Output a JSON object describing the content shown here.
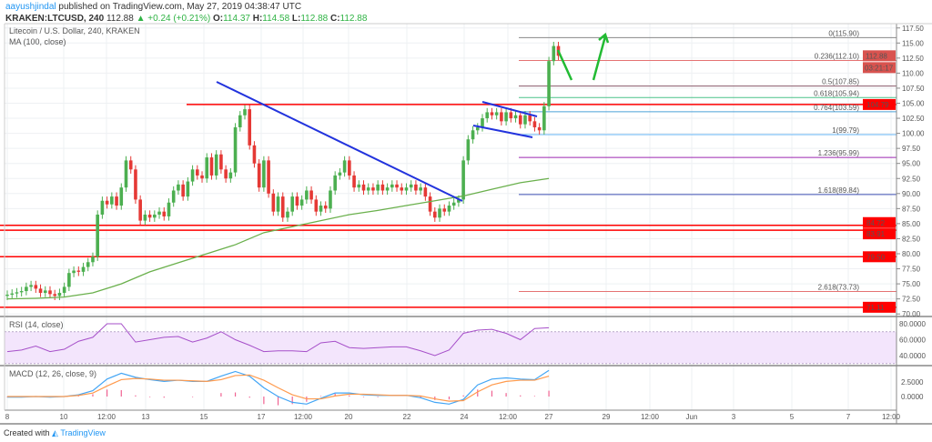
{
  "header": {
    "author": "aayushjindal",
    "published": "published on TradingView.com, May 27, 2019 04:38:47 UTC",
    "symbol": "KRAKEN:LTCUSD, 240",
    "last": "112.88",
    "change": "+0.24 (+0.21%)",
    "o_label": "O:",
    "o": "114.37",
    "h_label": "H:",
    "h": "114.58",
    "l_label": "L:",
    "l": "112.88",
    "c_label": "C:",
    "c": "112.88"
  },
  "footer": {
    "created": "Created with",
    "brand": "TradingView"
  },
  "colors": {
    "up": "#4caf50",
    "down": "#e53935",
    "ma": "#6ab04c",
    "rsi": "#a64fc9",
    "macd": "#42a5f5",
    "signal": "#ff9a4d",
    "hist": "#f06292",
    "level": "#ff0000",
    "trend": "#2233dd",
    "arrow": "#22bb33"
  },
  "chart_data": [
    {
      "type": "candlestick",
      "title": "Litecoin / U.S. Dollar, 240, KRAKEN",
      "indicator_label": "MA (100, close)",
      "ylim": [
        70,
        117.5
      ],
      "y_ticks": [
        "117.50",
        "115.00",
        "112.50",
        "110.00",
        "107.50",
        "105.00",
        "102.50",
        "100.00",
        "97.50",
        "95.00",
        "92.50",
        "90.00",
        "87.50",
        "85.00",
        "82.50",
        "80.00",
        "77.50",
        "75.00",
        "72.50",
        "70.00"
      ],
      "x_ticks": [
        "8",
        "10",
        "12:00",
        "13",
        "15",
        "17",
        "12:00",
        "20",
        "22",
        "24",
        "12:00",
        "27",
        "29",
        "12:00",
        "Jun",
        "3",
        "5",
        "7",
        "12:00"
      ],
      "grid": true,
      "closes": [
        73.2,
        73.4,
        73.6,
        73.8,
        74.5,
        74.8,
        74.2,
        73.5,
        73.9,
        73.3,
        73.0,
        73.5,
        74.5,
        76.8,
        77.2,
        77.0,
        77.8,
        78.6,
        79.5,
        86.5,
        88.8,
        88.2,
        89.5,
        88.0,
        91.0,
        95.5,
        94.0,
        89.0,
        85.5,
        86.5,
        86.0,
        86.5,
        87.0,
        86.2,
        88.5,
        90.5,
        91.5,
        89.5,
        92.0,
        94.0,
        93.0,
        92.5,
        96.0,
        93.0,
        96.5,
        94.0,
        92.5,
        93.5,
        101.0,
        103.0,
        104.0,
        98.0,
        95.0,
        91.0,
        95.5,
        90.0,
        87.0,
        89.5,
        86.0,
        87.0,
        89.5,
        88.0,
        89.0,
        90.5,
        89.0,
        87.0,
        88.0,
        87.5,
        90.5,
        93.0,
        93.5,
        95.5,
        93.0,
        91.0,
        91.5,
        90.5,
        91.0,
        90.5,
        91.5,
        90.5,
        91.0,
        91.5,
        91.0,
        90.5,
        91.0,
        91.5,
        90.5,
        91.0,
        89.5,
        87.0,
        86.0,
        87.5,
        87.0,
        88.0,
        88.5,
        89.0,
        95.5,
        99.0,
        100.5,
        101.0,
        102.5,
        103.5,
        103.0,
        103.5,
        102.0,
        103.5,
        102.5,
        103.0,
        101.5,
        103.0,
        102.0,
        101.0,
        100.5,
        104.5,
        112.0,
        114.5,
        112.88
      ],
      "ma100_daily": [
        72.5,
        72.6,
        72.8,
        73.5,
        75,
        77,
        78.5,
        80,
        81.5,
        83.5,
        84.5,
        85.5,
        86.5,
        87.2,
        88,
        88.8,
        89.6,
        90.7,
        91.8,
        92.5
      ],
      "price_badges": [
        {
          "value": "112.88",
          "color": "#d9534f"
        },
        {
          "value": "03:21:17",
          "color": "#d9534f"
        }
      ],
      "horizontal_levels": [
        {
          "value": 104.79,
          "label": "104.79"
        },
        {
          "value": 84.72,
          "label": "84.72"
        },
        {
          "value": 83.91,
          "label": "83.91"
        },
        {
          "value": 79.5,
          "label": "79.50"
        },
        {
          "value": 71.11,
          "label": "71.11"
        }
      ],
      "fibonacci": [
        {
          "ratio": "0",
          "price": 115.9,
          "label": "0(115.90)",
          "color": "#888888"
        },
        {
          "ratio": "0.236",
          "price": 112.1,
          "label": "0.236(112.10)",
          "color": "#e57373"
        },
        {
          "ratio": "0.5",
          "price": 107.85,
          "label": "0.5(107.85)",
          "color": "#8a5a6a"
        },
        {
          "ratio": "0.618",
          "price": 105.94,
          "label": "0.618(105.94)",
          "color": "#4cc38a"
        },
        {
          "ratio": "0.764",
          "price": 103.59,
          "label": "0.764(103.59)",
          "color": "#4aa0d8"
        },
        {
          "ratio": "1",
          "price": 99.79,
          "label": "1(99.79)",
          "color": "#64b5f6"
        },
        {
          "ratio": "1.236",
          "price": 95.99,
          "label": "1.236(95.99)",
          "color": "#9c27b0"
        },
        {
          "ratio": "1.618",
          "price": 89.84,
          "label": "1.618(89.84)",
          "color": "#3f51b5"
        },
        {
          "ratio": "2.618",
          "price": 73.73,
          "label": "2.618(73.73)",
          "color": "#e57373"
        }
      ]
    },
    {
      "type": "line",
      "title": "RSI (14, close)",
      "ylim": [
        30,
        85
      ],
      "y_ticks": [
        "80.0000",
        "60.0000",
        "40.0000"
      ],
      "band": [
        30,
        70
      ],
      "values_half_daily": [
        45,
        47,
        52,
        45,
        48,
        58,
        63,
        80,
        80,
        57,
        60,
        63,
        64,
        57,
        62,
        70,
        60,
        53,
        45,
        46,
        46,
        45,
        56,
        58,
        50,
        49,
        50,
        51,
        51,
        46,
        40,
        47,
        68,
        72,
        73,
        68,
        60,
        74,
        75
      ]
    },
    {
      "type": "line",
      "title": "MACD (12, 26, close, 9)",
      "y_ticks": [
        "2.5000",
        "0.0000"
      ],
      "series": [
        {
          "name": "macd",
          "values_half_daily": [
            -0.1,
            -0.1,
            0,
            -0.1,
            0,
            0.3,
            1.0,
            3.0,
            4.0,
            3.3,
            2.9,
            2.6,
            2.8,
            2.6,
            2.6,
            3.5,
            4.3,
            3.5,
            1.5,
            0,
            -1.0,
            -1.3,
            -0.3,
            0.6,
            0.6,
            0.3,
            0.2,
            0.2,
            0.2,
            -0.2,
            -1.0,
            -1.3,
            -0.5,
            2.0,
            3.0,
            3.2,
            3.0,
            2.9,
            4.5
          ]
        },
        {
          "name": "signal",
          "values_half_daily": [
            0,
            0,
            0,
            0,
            0,
            0.2,
            0.6,
            1.8,
            2.9,
            3.1,
            3.0,
            2.8,
            2.8,
            2.7,
            2.6,
            2.9,
            3.6,
            3.7,
            2.8,
            1.5,
            0.3,
            -0.4,
            -0.4,
            0.1,
            0.4,
            0.4,
            0.3,
            0.2,
            0.2,
            0.1,
            -0.4,
            -0.8,
            -0.7,
            0.8,
            2.0,
            2.6,
            2.8,
            2.8,
            3.5
          ]
        }
      ]
    }
  ]
}
